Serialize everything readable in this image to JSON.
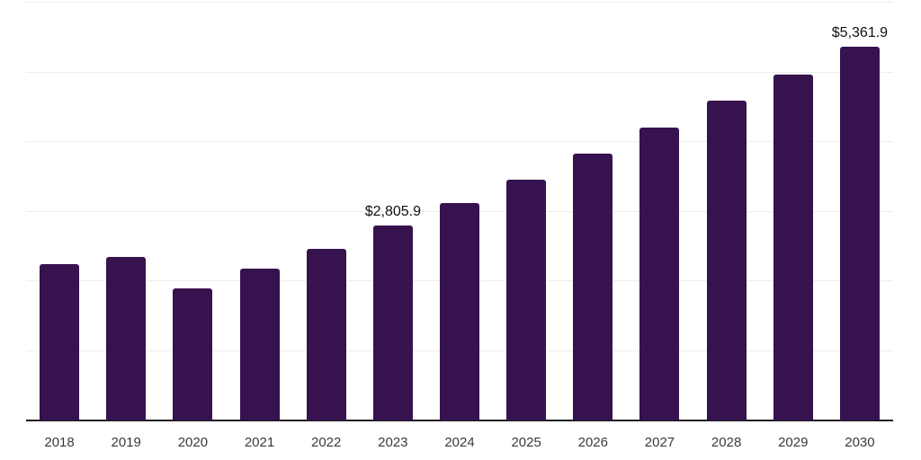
{
  "chart_data": {
    "type": "bar",
    "title": "",
    "xlabel": "",
    "ylabel": "",
    "categories": [
      "2018",
      "2019",
      "2020",
      "2021",
      "2022",
      "2023",
      "2024",
      "2025",
      "2026",
      "2027",
      "2028",
      "2029",
      "2030"
    ],
    "values": [
      2240,
      2350,
      1900,
      2185,
      2470,
      2805.9,
      3125,
      3460,
      3830,
      4205,
      4590,
      4965,
      5361.9
    ],
    "point_labels": [
      "",
      "",
      "",
      "",
      "",
      "$2,805.9",
      "",
      "",
      "",
      "",
      "",
      "",
      "$5,361.9"
    ],
    "ylim": [
      0,
      6000
    ],
    "grid_step": 1000,
    "grid": true,
    "legend": "none",
    "y_axis_tick_labels": "none",
    "colors": {
      "bar": "#36124E",
      "gridline": "#ededed",
      "axis": "#1f1f1f",
      "tick_label": "#3a3a3a",
      "data_label": "#111111",
      "background": "#ffffff"
    }
  }
}
